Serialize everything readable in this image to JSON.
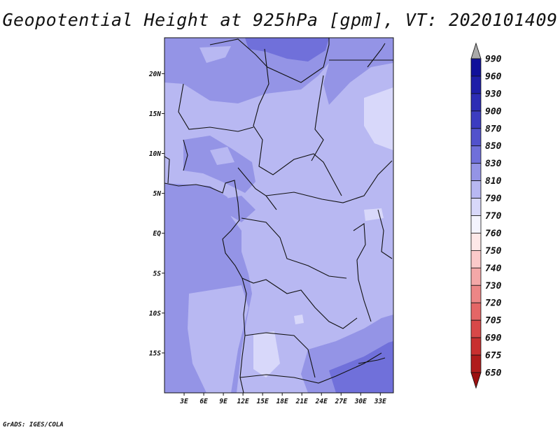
{
  "title": "Geopotential Height at 925hPa [gpm], VT: 2020101409",
  "footer": "GrADS: IGES/COLA",
  "map": {
    "lat_ticks": [
      "20N",
      "15N",
      "10N",
      "5N",
      "EQ",
      "5S",
      "10S",
      "15S"
    ],
    "lon_ticks": [
      "3E",
      "6E",
      "9E",
      "12E",
      "15E",
      "18E",
      "21E",
      "24E",
      "27E",
      "30E",
      "33E"
    ],
    "lon_range": [
      0,
      35
    ],
    "lat_range": [
      -20,
      24.5
    ]
  },
  "colorbar": {
    "levels": [
      "990",
      "960",
      "930",
      "900",
      "870",
      "850",
      "830",
      "810",
      "790",
      "770",
      "760",
      "750",
      "740",
      "730",
      "720",
      "705",
      "690",
      "675",
      "650"
    ],
    "colors": [
      "#aaaaaa",
      "#10109a",
      "#1e1ea8",
      "#2c2cb4",
      "#3c3cc0",
      "#5252cc",
      "#7070da",
      "#9494e6",
      "#b8b8f2",
      "#d8d8fa",
      "#f4f4fe",
      "#fde8e8",
      "#fbcaca",
      "#f4a8a8",
      "#ec8686",
      "#e46666",
      "#d84848",
      "#c83030",
      "#b01c1c",
      "#9c1010"
    ]
  }
}
